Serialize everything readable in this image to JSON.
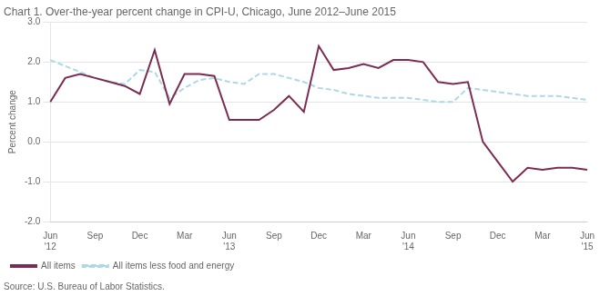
{
  "chart_data": {
    "type": "line",
    "title": "Chart 1. Over-the-year percent change in CPI-U, Chicago, June 2012–June 2015",
    "y_label": "Percent change",
    "annotations": [
      "Source: U.S. Bureau of Labor Statistics."
    ],
    "categories": [
      "Jun\n'12",
      null,
      null,
      "Sep",
      null,
      null,
      "Dec",
      null,
      null,
      "Mar",
      null,
      null,
      "Jun\n'13",
      null,
      null,
      "Sep",
      null,
      null,
      "Dec",
      null,
      null,
      "Mar",
      null,
      null,
      "Jun\n'14",
      null,
      null,
      "Sep",
      null,
      null,
      "Dec",
      null,
      null,
      "Mar",
      null,
      null,
      "Jun\n'15"
    ],
    "series": [
      {
        "name": "All items",
        "color": "#7B2C52",
        "line_style": "solid",
        "values": [
          1.0,
          1.6,
          1.7,
          1.6,
          1.5,
          1.4,
          1.2,
          2.3,
          0.95,
          1.7,
          1.7,
          1.65,
          0.55,
          0.55,
          0.55,
          0.8,
          1.15,
          0.75,
          2.4,
          1.8,
          1.85,
          1.95,
          1.85,
          2.05,
          2.05,
          2.0,
          1.5,
          1.45,
          1.5,
          0.0,
          -0.5,
          -1.0,
          -0.65,
          -0.7,
          -0.65,
          -0.65,
          -0.7
        ]
      },
      {
        "name": "All items less food and energy",
        "color": "#ADD8E6",
        "line_style": "dashed",
        "values": [
          2.05,
          1.9,
          1.75,
          1.6,
          1.5,
          1.45,
          1.8,
          1.75,
          1.1,
          1.35,
          1.55,
          1.6,
          1.5,
          1.45,
          1.7,
          1.7,
          1.6,
          1.5,
          1.35,
          1.3,
          1.2,
          1.15,
          1.1,
          1.1,
          1.1,
          1.05,
          1.0,
          1.0,
          1.35,
          1.3,
          1.25,
          1.2,
          1.15,
          1.15,
          1.15,
          1.1,
          1.05
        ]
      }
    ],
    "ylim": [
      -2.0,
      3.0
    ],
    "yticks": [
      {
        "value": -2.0,
        "label": "-2.0"
      },
      {
        "value": -1.0,
        "label": "-1.0"
      },
      {
        "value": 0.0,
        "label": "0.0"
      },
      {
        "value": 1.0,
        "label": "1.0"
      },
      {
        "value": 2.0,
        "label": "2.0"
      },
      {
        "value": 3.0,
        "label": "3.0"
      }
    ],
    "grid": true,
    "legend": "lower left"
  }
}
